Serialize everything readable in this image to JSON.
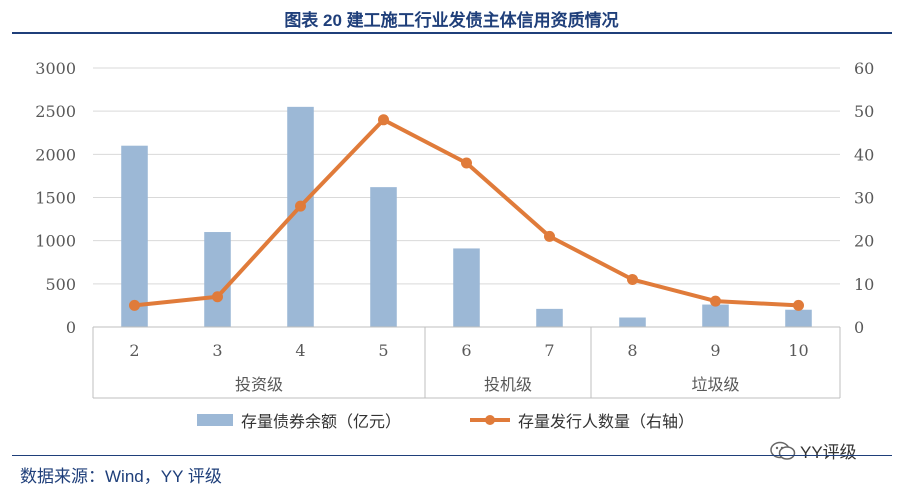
{
  "title": "图表 20 建工施工行业发债主体信用资质情况",
  "source": "数据来源：Wind，YY 评级",
  "watermark": "YY评级",
  "colors": {
    "bar": "#9cb8d6",
    "line": "#e07b3a",
    "grid": "#d9d9d9",
    "text": "#595959",
    "title": "#1f3f7a"
  },
  "chart_data": {
    "type": "bar+line",
    "categories": [
      "2",
      "3",
      "4",
      "5",
      "6",
      "7",
      "8",
      "9",
      "10"
    ],
    "groups": [
      {
        "label": "投资级",
        "from": 0,
        "to": 3
      },
      {
        "label": "投机级",
        "from": 4,
        "to": 5
      },
      {
        "label": "垃圾级",
        "from": 6,
        "to": 8
      }
    ],
    "series": [
      {
        "name": "存量债券余额（亿元）",
        "type": "bar",
        "axis": "left",
        "values": [
          2100,
          1100,
          2550,
          1620,
          910,
          210,
          110,
          260,
          200
        ]
      },
      {
        "name": "存量发行人数量（右轴）",
        "type": "line",
        "axis": "right",
        "values": [
          5,
          7,
          28,
          48,
          38,
          21,
          11,
          6,
          5
        ]
      }
    ],
    "y_left": {
      "min": 0,
      "max": 3000,
      "ticks": [
        "0",
        "500",
        "1000",
        "1500",
        "2000",
        "2500",
        "3000"
      ]
    },
    "y_right": {
      "min": 0,
      "max": 60,
      "ticks": [
        "0",
        "10",
        "20",
        "30",
        "40",
        "50",
        "60"
      ]
    },
    "legend": "bottom"
  }
}
